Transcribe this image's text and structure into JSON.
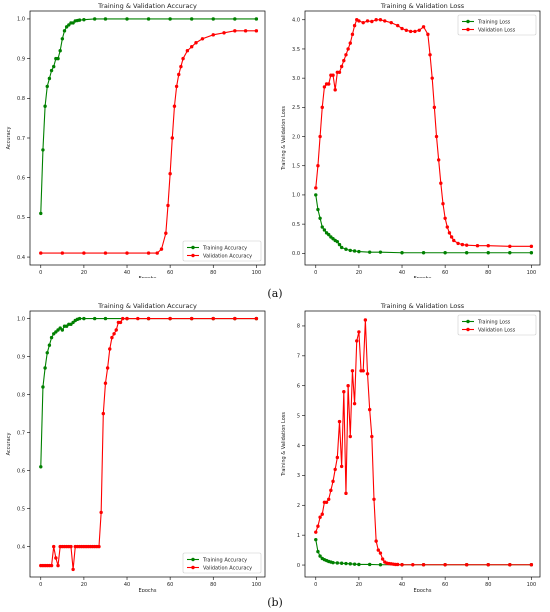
{
  "captions": [
    "(a)",
    "(b)"
  ],
  "chart_data": [
    {
      "type": "line",
      "title": "Training & Validation Accuracy",
      "xlabel": "Epochs",
      "ylabel": "Accuracy",
      "xlim": [
        -5,
        104
      ],
      "ylim": [
        0.38,
        1.02
      ],
      "xticks": [
        0,
        20,
        40,
        60,
        80,
        100
      ],
      "yticks": [
        0.4,
        0.5,
        0.6,
        0.7,
        0.8,
        0.9,
        1.0
      ],
      "legend": "bottom-right",
      "grid": false,
      "series": [
        {
          "name": "Training Accuracy",
          "color": "#008000",
          "x": [
            0,
            1,
            2,
            3,
            4,
            5,
            6,
            7,
            8,
            9,
            10,
            11,
            12,
            13,
            14,
            15,
            16,
            17,
            18,
            20,
            25,
            30,
            40,
            50,
            60,
            70,
            80,
            90,
            100
          ],
          "y": [
            0.51,
            0.67,
            0.78,
            0.83,
            0.85,
            0.87,
            0.88,
            0.9,
            0.9,
            0.92,
            0.95,
            0.97,
            0.98,
            0.985,
            0.99,
            0.99,
            0.995,
            0.996,
            0.997,
            0.998,
            1.0,
            1.0,
            1.0,
            1.0,
            1.0,
            1.0,
            1.0,
            1.0,
            1.0
          ]
        },
        {
          "name": "Validation Accuracy",
          "color": "#ff0000",
          "x": [
            0,
            10,
            20,
            30,
            40,
            50,
            54,
            56,
            58,
            59,
            60,
            61,
            62,
            63,
            64,
            65,
            66,
            68,
            70,
            72,
            75,
            80,
            85,
            90,
            95,
            100
          ],
          "y": [
            0.41,
            0.41,
            0.41,
            0.41,
            0.41,
            0.41,
            0.41,
            0.42,
            0.46,
            0.53,
            0.61,
            0.7,
            0.78,
            0.83,
            0.86,
            0.88,
            0.9,
            0.92,
            0.93,
            0.94,
            0.95,
            0.96,
            0.965,
            0.97,
            0.97,
            0.97
          ]
        }
      ]
    },
    {
      "type": "line",
      "title": "Training & Validation Loss",
      "xlabel": "Epochs",
      "ylabel": "Training & Validation Loss",
      "xlim": [
        -5,
        104
      ],
      "ylim": [
        -0.2,
        4.15
      ],
      "xticks": [
        0,
        20,
        40,
        60,
        80,
        100
      ],
      "yticks": [
        0.0,
        0.5,
        1.0,
        1.5,
        2.0,
        2.5,
        3.0,
        3.5,
        4.0
      ],
      "legend": "top-right",
      "grid": false,
      "series": [
        {
          "name": "Training Loss",
          "color": "#008000",
          "x": [
            0,
            1,
            2,
            3,
            4,
            5,
            6,
            7,
            8,
            9,
            10,
            11,
            12,
            14,
            16,
            18,
            20,
            25,
            30,
            40,
            50,
            60,
            70,
            80,
            90,
            100
          ],
          "y": [
            1.0,
            0.75,
            0.6,
            0.45,
            0.4,
            0.35,
            0.32,
            0.28,
            0.25,
            0.22,
            0.2,
            0.15,
            0.1,
            0.07,
            0.05,
            0.04,
            0.03,
            0.02,
            0.02,
            0.01,
            0.01,
            0.01,
            0.01,
            0.01,
            0.01,
            0.01
          ]
        },
        {
          "name": "Validation Loss",
          "color": "#ff0000",
          "x": [
            0,
            1,
            2,
            3,
            4,
            5,
            6,
            7,
            8,
            9,
            10,
            11,
            12,
            13,
            14,
            15,
            16,
            17,
            18,
            19,
            20,
            22,
            24,
            26,
            28,
            30,
            32,
            35,
            38,
            40,
            42,
            44,
            46,
            48,
            50,
            52,
            53,
            54,
            55,
            56,
            57,
            58,
            59,
            60,
            61,
            62,
            63,
            64,
            66,
            68,
            70,
            75,
            80,
            90,
            100
          ],
          "y": [
            1.12,
            1.5,
            2.0,
            2.5,
            2.85,
            2.9,
            2.9,
            3.05,
            3.05,
            2.8,
            3.1,
            3.1,
            3.2,
            3.3,
            3.4,
            3.5,
            3.6,
            3.75,
            3.9,
            4.0,
            3.98,
            3.95,
            3.98,
            3.97,
            4.0,
            4.0,
            3.98,
            3.95,
            3.9,
            3.85,
            3.82,
            3.8,
            3.8,
            3.82,
            3.88,
            3.75,
            3.4,
            3.0,
            2.5,
            2.0,
            1.6,
            1.2,
            0.85,
            0.6,
            0.45,
            0.35,
            0.28,
            0.22,
            0.17,
            0.15,
            0.14,
            0.13,
            0.13,
            0.12,
            0.12
          ]
        }
      ]
    },
    {
      "type": "line",
      "title": "Training & Validation Accuracy",
      "xlabel": "Epochs",
      "ylabel": "Accuracy",
      "xlim": [
        -5,
        104
      ],
      "ylim": [
        0.32,
        1.02
      ],
      "xticks": [
        0,
        20,
        40,
        60,
        80,
        100
      ],
      "yticks": [
        0.4,
        0.5,
        0.6,
        0.7,
        0.8,
        0.9,
        1.0
      ],
      "legend": "bottom-right",
      "grid": false,
      "series": [
        {
          "name": "Training Accuracy",
          "color": "#008000",
          "x": [
            0,
            1,
            2,
            3,
            4,
            5,
            6,
            7,
            8,
            9,
            10,
            11,
            12,
            13,
            14,
            15,
            16,
            17,
            18,
            20,
            25,
            30,
            40,
            50,
            60,
            70,
            80,
            90,
            100
          ],
          "y": [
            0.61,
            0.82,
            0.87,
            0.91,
            0.93,
            0.95,
            0.96,
            0.965,
            0.97,
            0.975,
            0.97,
            0.98,
            0.98,
            0.985,
            0.985,
            0.99,
            0.995,
            0.998,
            1.0,
            1.0,
            1.0,
            1.0,
            1.0,
            1.0,
            1.0,
            1.0,
            1.0,
            1.0,
            1.0
          ]
        },
        {
          "name": "Validation Accuracy",
          "color": "#ff0000",
          "x": [
            0,
            1,
            2,
            3,
            4,
            5,
            6,
            7,
            8,
            9,
            10,
            11,
            12,
            13,
            14,
            15,
            16,
            17,
            18,
            19,
            20,
            21,
            22,
            23,
            24,
            25,
            26,
            27,
            28,
            29,
            30,
            31,
            32,
            33,
            34,
            35,
            36,
            37,
            38,
            40,
            45,
            50,
            60,
            70,
            80,
            90,
            100
          ],
          "y": [
            0.35,
            0.35,
            0.35,
            0.35,
            0.35,
            0.35,
            0.4,
            0.37,
            0.35,
            0.4,
            0.4,
            0.4,
            0.4,
            0.4,
            0.4,
            0.34,
            0.4,
            0.4,
            0.4,
            0.4,
            0.4,
            0.4,
            0.4,
            0.4,
            0.4,
            0.4,
            0.4,
            0.4,
            0.49,
            0.75,
            0.83,
            0.87,
            0.92,
            0.95,
            0.96,
            0.97,
            0.99,
            0.99,
            1.0,
            1.0,
            1.0,
            1.0,
            1.0,
            1.0,
            1.0,
            1.0,
            1.0
          ]
        }
      ]
    },
    {
      "type": "line",
      "title": "Training & Validation Loss",
      "xlabel": "Epochs",
      "ylabel": "Training & Validation Loss",
      "xlim": [
        -5,
        104
      ],
      "ylim": [
        -0.4,
        8.5
      ],
      "xticks": [
        0,
        20,
        40,
        60,
        80,
        100
      ],
      "yticks": [
        0,
        1,
        2,
        3,
        4,
        5,
        6,
        7,
        8
      ],
      "legend": "top-right",
      "grid": false,
      "series": [
        {
          "name": "Training Loss",
          "color": "#008000",
          "x": [
            0,
            1,
            2,
            3,
            4,
            5,
            6,
            7,
            8,
            10,
            12,
            14,
            16,
            18,
            20,
            25,
            30,
            40,
            50,
            60,
            70,
            80,
            90,
            100
          ],
          "y": [
            0.85,
            0.45,
            0.3,
            0.22,
            0.18,
            0.15,
            0.12,
            0.1,
            0.08,
            0.07,
            0.06,
            0.05,
            0.04,
            0.03,
            0.02,
            0.02,
            0.01,
            0.01,
            0.01,
            0.01,
            0.01,
            0.01,
            0.01,
            0.01
          ]
        },
        {
          "name": "Validation Loss",
          "color": "#ff0000",
          "x": [
            0,
            1,
            2,
            3,
            4,
            5,
            6,
            7,
            8,
            9,
            10,
            11,
            12,
            13,
            14,
            15,
            16,
            17,
            18,
            19,
            20,
            21,
            22,
            23,
            24,
            25,
            26,
            27,
            28,
            29,
            30,
            31,
            32,
            33,
            34,
            35,
            36,
            37,
            38,
            40,
            45,
            50,
            60,
            70,
            80,
            90,
            100
          ],
          "y": [
            1.1,
            1.3,
            1.6,
            1.7,
            2.1,
            2.1,
            2.2,
            2.5,
            2.8,
            3.2,
            3.6,
            4.8,
            3.3,
            5.8,
            2.4,
            6.0,
            4.3,
            6.5,
            5.4,
            7.5,
            7.8,
            6.5,
            6.5,
            8.2,
            6.4,
            5.2,
            4.3,
            2.2,
            0.8,
            0.5,
            0.4,
            0.2,
            0.1,
            0.06,
            0.05,
            0.04,
            0.03,
            0.02,
            0.02,
            0.01,
            0.01,
            0.01,
            0.01,
            0.01,
            0.01,
            0.01,
            0.01
          ]
        }
      ]
    }
  ]
}
